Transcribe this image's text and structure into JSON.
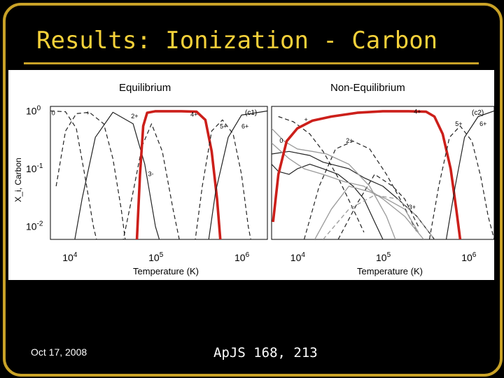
{
  "slide": {
    "title": "Results: Ionization - Carbon",
    "date": "Oct 17, 2008",
    "citation": "ApJS 168, 213"
  },
  "colors": {
    "background": "#000000",
    "frame": "#c9a227",
    "title": "#f5d13a",
    "highlight": "#cc1f1a",
    "curve_dark": "#222222",
    "curve_gray": "#9a9a9a"
  },
  "chart_data": [
    {
      "type": "line",
      "title": "Equilibrium",
      "panel_tag": "(c1)",
      "xlabel": "Temperature (K)",
      "ylabel": "X_i, Carbon",
      "x_scale": "log",
      "y_scale": "log",
      "xlim": [
        6000,
        2000000
      ],
      "ylim": [
        0.006,
        1.2
      ],
      "x_ticks": [
        {
          "value": 10000,
          "base": "10",
          "exp": "4"
        },
        {
          "value": 100000,
          "base": "10",
          "exp": "5"
        },
        {
          "value": 1000000,
          "base": "10",
          "exp": "6"
        }
      ],
      "y_ticks": [
        {
          "value": 1,
          "base": "10",
          "exp": "0"
        },
        {
          "value": 0.1,
          "base": "10",
          "exp": "-1"
        },
        {
          "value": 0.01,
          "base": "10",
          "exp": "-2"
        }
      ],
      "ion_labels": [
        {
          "text": "0",
          "x": 6200,
          "y": 0.85
        },
        {
          "text": "+",
          "x": 15500,
          "y": 0.85
        },
        {
          "text": "2+",
          "x": 52000,
          "y": 0.75
        },
        {
          "text": "4+",
          "x": 255000,
          "y": 0.8
        },
        {
          "text": "5+",
          "x": 560000,
          "y": 0.5
        },
        {
          "text": "6+",
          "x": 1000000,
          "y": 0.5
        },
        {
          "text": "3-",
          "x": 82000,
          "y": 0.075
        }
      ],
      "series": [
        {
          "style": "dashed",
          "points": [
            [
              6000,
              1
            ],
            [
              9000,
              0.97
            ],
            [
              12000,
              0.5
            ],
            [
              15000,
              0.08
            ],
            [
              19000,
              0.01
            ],
            [
              22000,
              0.004
            ]
          ]
        },
        {
          "style": "dashed",
          "points": [
            [
              7000,
              0.05
            ],
            [
              9000,
              0.45
            ],
            [
              12000,
              0.9
            ],
            [
              17000,
              0.95
            ],
            [
              25000,
              0.6
            ],
            [
              32000,
              0.15
            ],
            [
              40000,
              0.02
            ],
            [
              46000,
              0.004
            ]
          ]
        },
        {
          "style": "solid",
          "points": [
            [
              11000,
              0.004
            ],
            [
              14000,
              0.03
            ],
            [
              20000,
              0.35
            ],
            [
              32000,
              0.95
            ],
            [
              55000,
              0.6
            ],
            [
              75000,
              0.12
            ],
            [
              100000,
              0.01
            ],
            [
              120000,
              0.004
            ]
          ]
        },
        {
          "style": "dashed",
          "points": [
            [
              40000,
              0.004
            ],
            [
              55000,
              0.04
            ],
            [
              70000,
              0.25
            ],
            [
              90000,
              0.6
            ],
            [
              120000,
              0.2
            ],
            [
              160000,
              0.02
            ],
            [
              200000,
              0.004
            ]
          ]
        },
        {
          "style": "highlight",
          "points": [
            [
              60000,
              0.004
            ],
            [
              66000,
              0.08
            ],
            [
              72000,
              0.55
            ],
            [
              80000,
              0.93
            ],
            [
              100000,
              0.99
            ],
            [
              200000,
              0.99
            ],
            [
              300000,
              0.97
            ],
            [
              380000,
              0.7
            ],
            [
              450000,
              0.2
            ],
            [
              520000,
              0.03
            ],
            [
              580000,
              0.004
            ]
          ]
        },
        {
          "style": "dashed",
          "points": [
            [
              280000,
              0.004
            ],
            [
              350000,
              0.05
            ],
            [
              450000,
              0.45
            ],
            [
              600000,
              0.7
            ],
            [
              800000,
              0.4
            ],
            [
              1000000,
              0.08
            ],
            [
              1200000,
              0.01
            ],
            [
              1350000,
              0.004
            ]
          ]
        },
        {
          "style": "solid",
          "points": [
            [
              400000,
              0.004
            ],
            [
              500000,
              0.04
            ],
            [
              700000,
              0.35
            ],
            [
              1000000,
              0.85
            ],
            [
              2000000,
              1
            ]
          ]
        }
      ]
    },
    {
      "type": "line",
      "title": "Non-Equilibrium",
      "panel_tag": "(c2)",
      "xlabel": "Temperature (K)",
      "ylabel": "",
      "x_scale": "log",
      "y_scale": "log",
      "xlim": [
        5000,
        2000000
      ],
      "ylim": [
        0.006,
        1.2
      ],
      "x_ticks": [
        {
          "value": 10000,
          "base": "10",
          "exp": "4"
        },
        {
          "value": 100000,
          "base": "10",
          "exp": "5"
        },
        {
          "value": 1000000,
          "base": "10",
          "exp": "6"
        }
      ],
      "ion_labels": [
        {
          "text": "4+",
          "x": 230000,
          "y": 0.9
        },
        {
          "text": "+",
          "x": 12000,
          "y": 0.65
        },
        {
          "text": "5+",
          "x": 700000,
          "y": 0.55
        },
        {
          "text": "6+",
          "x": 1350000,
          "y": 0.55
        },
        {
          "text": "0",
          "x": 6200,
          "y": 0.28
        },
        {
          "text": "2+",
          "x": 37000,
          "y": 0.28
        },
        {
          "text": "3+",
          "x": 200000,
          "y": 0.02
        }
      ],
      "series": [
        {
          "style": "solid",
          "points": [
            [
              5000,
              0.12
            ],
            [
              6000,
              0.09
            ],
            [
              8000,
              0.08
            ],
            [
              10000,
              0.1
            ],
            [
              14000,
              0.12
            ],
            [
              20000,
              0.1
            ],
            [
              30000,
              0.08
            ],
            [
              45000,
              0.05
            ],
            [
              60000,
              0.03
            ],
            [
              80000,
              0.012
            ],
            [
              100000,
              0.006
            ]
          ]
        },
        {
          "style": "solid",
          "points": [
            [
              5000,
              0.18
            ],
            [
              8000,
              0.2
            ],
            [
              14000,
              0.17
            ],
            [
              20000,
              0.13
            ],
            [
              40000,
              0.1
            ],
            [
              60000,
              0.07
            ],
            [
              100000,
              0.05
            ],
            [
              150000,
              0.03
            ],
            [
              250000,
              0.015
            ],
            [
              400000,
              0.006
            ]
          ]
        },
        {
          "style": "dashed",
          "points": [
            [
              6000,
              0.8
            ],
            [
              9000,
              0.65
            ],
            [
              14000,
              0.4
            ],
            [
              20000,
              0.2
            ],
            [
              30000,
              0.07
            ],
            [
              45000,
              0.02
            ],
            [
              60000,
              0.008
            ]
          ]
        },
        {
          "style": "dashed",
          "points": [
            [
              12000,
              0.006
            ],
            [
              18000,
              0.05
            ],
            [
              28000,
              0.22
            ],
            [
              45000,
              0.3
            ],
            [
              70000,
              0.22
            ],
            [
              110000,
              0.08
            ],
            [
              170000,
              0.025
            ],
            [
              250000,
              0.008
            ]
          ]
        },
        {
          "style": "dashed",
          "points": [
            [
              30000,
              0.006
            ],
            [
              50000,
              0.025
            ],
            [
              80000,
              0.08
            ],
            [
              130000,
              0.05
            ],
            [
              180000,
              0.03
            ],
            [
              260000,
              0.01
            ]
          ]
        },
        {
          "style": "gray",
          "points": [
            [
              5000,
              0.5
            ],
            [
              7000,
              0.3
            ],
            [
              10000,
              0.22
            ],
            [
              15000,
              0.2
            ],
            [
              22000,
              0.18
            ],
            [
              40000,
              0.12
            ],
            [
              70000,
              0.05
            ],
            [
              110000,
              0.015
            ],
            [
              140000,
              0.006
            ]
          ]
        },
        {
          "style": "gray",
          "points": [
            [
              5000,
              0.28
            ],
            [
              8000,
              0.15
            ],
            [
              12000,
              0.1
            ],
            [
              20000,
              0.08
            ],
            [
              35000,
              0.06
            ],
            [
              60000,
              0.05
            ],
            [
              100000,
              0.03
            ],
            [
              180000,
              0.015
            ],
            [
              300000,
              0.006
            ]
          ]
        },
        {
          "style": "gray",
          "points": [
            [
              16000,
              0.006
            ],
            [
              25000,
              0.02
            ],
            [
              40000,
              0.05
            ],
            [
              70000,
              0.04
            ],
            [
              110000,
              0.03
            ],
            [
              180000,
              0.02
            ],
            [
              260000,
              0.008
            ]
          ]
        },
        {
          "style": "gray-dashed",
          "points": [
            [
              20000,
              0.006
            ],
            [
              40000,
              0.02
            ],
            [
              80000,
              0.035
            ],
            [
              150000,
              0.03
            ],
            [
              250000,
              0.015
            ],
            [
              400000,
              0.006
            ]
          ]
        },
        {
          "style": "highlight",
          "points": [
            [
              5200,
              0.012
            ],
            [
              6000,
              0.08
            ],
            [
              7500,
              0.3
            ],
            [
              10000,
              0.5
            ],
            [
              15000,
              0.68
            ],
            [
              25000,
              0.8
            ],
            [
              50000,
              0.93
            ],
            [
              100000,
              0.99
            ],
            [
              200000,
              0.99
            ],
            [
              320000,
              0.97
            ],
            [
              400000,
              0.8
            ],
            [
              500000,
              0.4
            ],
            [
              620000,
              0.1
            ],
            [
              720000,
              0.02
            ],
            [
              800000,
              0.006
            ]
          ]
        },
        {
          "style": "dashed",
          "points": [
            [
              350000,
              0.006
            ],
            [
              450000,
              0.05
            ],
            [
              600000,
              0.35
            ],
            [
              800000,
              0.55
            ],
            [
              1100000,
              0.3
            ],
            [
              1400000,
              0.07
            ],
            [
              1700000,
              0.015
            ],
            [
              2000000,
              0.006
            ]
          ]
        },
        {
          "style": "solid",
          "points": [
            [
              550000,
              0.006
            ],
            [
              700000,
              0.05
            ],
            [
              900000,
              0.35
            ],
            [
              1300000,
              0.8
            ],
            [
              2000000,
              1
            ]
          ]
        }
      ]
    }
  ]
}
